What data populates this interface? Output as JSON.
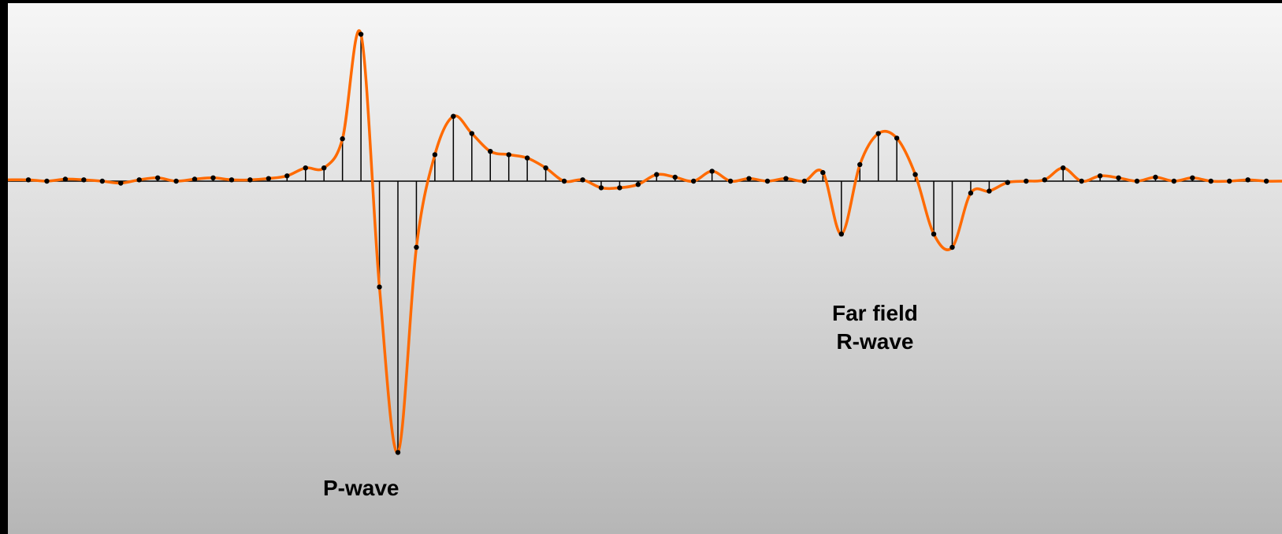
{
  "labels": {
    "p_wave": "P-wave",
    "far_field_line1": "Far field",
    "far_field_line2": "R-wave"
  },
  "colors": {
    "signal": "#ff6a00",
    "sample": "#000000",
    "baseline": "#000000"
  },
  "samples": [
    2,
    0,
    3,
    2,
    0,
    -3,
    2,
    5,
    0,
    3,
    5,
    2,
    2,
    4,
    8,
    20,
    20,
    64,
    222,
    -160,
    -410,
    -100,
    40,
    98,
    72,
    45,
    40,
    35,
    20,
    0,
    2,
    -10,
    -10,
    -5,
    10,
    6,
    0,
    15,
    0,
    4,
    0,
    4,
    0,
    13,
    -80,
    25,
    72,
    65,
    10,
    -80,
    -100,
    -18,
    -15,
    -2,
    0,
    2,
    20,
    0,
    8,
    5,
    0,
    6,
    0,
    5,
    0,
    0,
    2,
    0
  ]
}
